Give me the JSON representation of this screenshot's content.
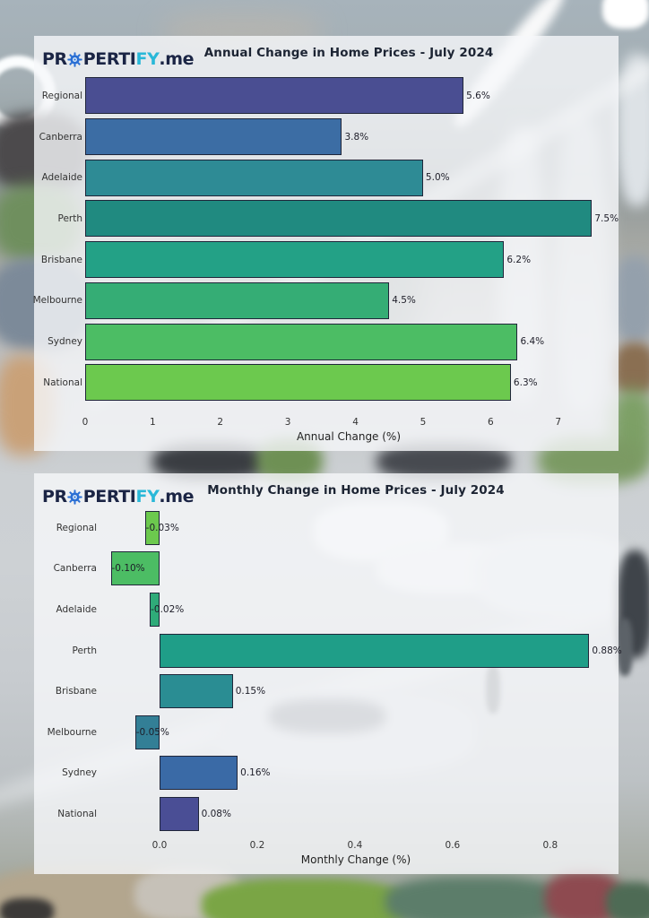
{
  "logo": {
    "pre": "PR",
    "mid": "PERTI",
    "accent": "FY",
    "suffix": ".me"
  },
  "brand_colors": {
    "navy": "#1b2545",
    "cyan": "#29b8d8",
    "gear_blue": "#2a6fd4"
  },
  "chart_data": [
    {
      "type": "bar",
      "orientation": "horizontal",
      "title": "Annual Change in Home Prices - July 2024",
      "xlabel": "Annual Change (%)",
      "categories": [
        "Regional",
        "Canberra",
        "Adelaide",
        "Perth",
        "Brisbane",
        "Melbourne",
        "Sydney",
        "National"
      ],
      "values": [
        5.6,
        3.8,
        5.0,
        7.5,
        6.2,
        4.5,
        6.4,
        6.3
      ],
      "value_labels": [
        "5.6%",
        "3.8%",
        "5.0%",
        "7.5%",
        "6.2%",
        "4.5%",
        "6.4%",
        "6.3%"
      ],
      "bar_colors": [
        "#4a4e92",
        "#3c6da4",
        "#2e8b95",
        "#208a80",
        "#23a186",
        "#35ad75",
        "#4cbd64",
        "#6cc94e"
      ],
      "xlim": [
        0,
        7.8
      ],
      "ticks": {
        "labels": [
          "0",
          "1",
          "2",
          "3",
          "4",
          "5",
          "6",
          "7"
        ],
        "values": [
          0,
          1,
          2,
          3,
          4,
          5,
          6,
          7
        ]
      },
      "grid": false,
      "legend": "none"
    },
    {
      "type": "bar",
      "orientation": "horizontal",
      "title": "Monthly Change in Home Prices - July 2024",
      "xlabel": "Monthly Change (%)",
      "categories": [
        "Regional",
        "Canberra",
        "Adelaide",
        "Perth",
        "Brisbane",
        "Melbourne",
        "Sydney",
        "National"
      ],
      "values": [
        -0.03,
        -0.1,
        -0.02,
        0.88,
        0.15,
        -0.05,
        0.16,
        0.08
      ],
      "value_labels": [
        "-0.03%",
        "-0.10%",
        "-0.02%",
        "0.88%",
        "0.15%",
        "-0.05%",
        "0.16%",
        "0.08%"
      ],
      "bar_colors": [
        "#6cc94e",
        "#4cbd64",
        "#2fab79",
        "#1f9e88",
        "#2a8d93",
        "#337f96",
        "#3a6aa6",
        "#4a4e95"
      ],
      "xlim": [
        -0.123,
        0.927
      ],
      "ticks": {
        "labels": [
          "0.0",
          "0.2",
          "0.4",
          "0.6",
          "0.8"
        ],
        "values": [
          0,
          0.2,
          0.4,
          0.6,
          0.8
        ]
      },
      "grid": false,
      "legend": "none"
    }
  ]
}
